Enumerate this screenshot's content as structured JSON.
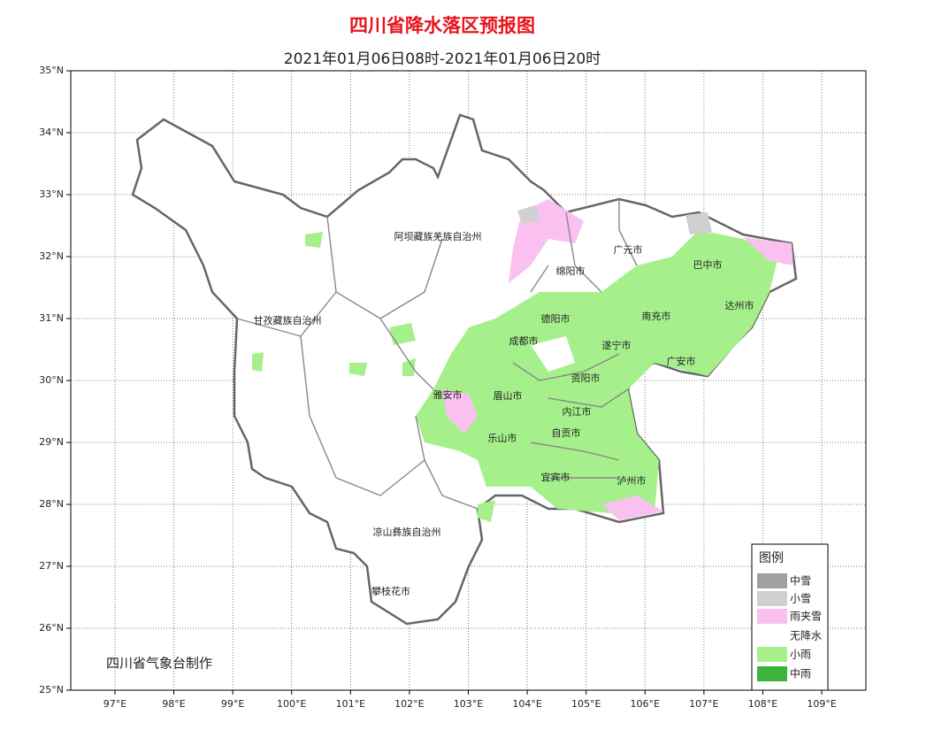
{
  "map": {
    "title": "四川省降水落区预报图",
    "subtitle": "2021年01月06日08时-2021年01月06日20时",
    "credit": "四川省气象台制作",
    "lon_range": [
      96.25,
      109.75
    ],
    "lat_range": [
      25,
      35
    ],
    "lon_ticks": [
      {
        "value": 97,
        "label": "97°E"
      },
      {
        "value": 98,
        "label": "98°E"
      },
      {
        "value": 99,
        "label": "99°E"
      },
      {
        "value": 100,
        "label": "100°E"
      },
      {
        "value": 101,
        "label": "101°E"
      },
      {
        "value": 102,
        "label": "102°E"
      },
      {
        "value": 103,
        "label": "103°E"
      },
      {
        "value": 104,
        "label": "104°E"
      },
      {
        "value": 105,
        "label": "105°E"
      },
      {
        "value": 106,
        "label": "106°E"
      },
      {
        "value": 107,
        "label": "107°E"
      },
      {
        "value": 108,
        "label": "108°E"
      },
      {
        "value": 109,
        "label": "109°E"
      }
    ],
    "lat_ticks": [
      {
        "value": 25,
        "label": "25°N"
      },
      {
        "value": 26,
        "label": "26°N"
      },
      {
        "value": 27,
        "label": "27°N"
      },
      {
        "value": 28,
        "label": "28°N"
      },
      {
        "value": 29,
        "label": "29°N"
      },
      {
        "value": 30,
        "label": "30°N"
      },
      {
        "value": 31,
        "label": "31°N"
      },
      {
        "value": 32,
        "label": "32°N"
      },
      {
        "value": 33,
        "label": "33°N"
      },
      {
        "value": 34,
        "label": "34°N"
      },
      {
        "value": 35,
        "label": "35°N"
      }
    ],
    "regions": [
      "阿坝藏族羌族自治州",
      "广元市",
      "巴中市",
      "绵阳市",
      "达州市",
      "南充市",
      "德阳市",
      "甘孜藏族自治州",
      "成都市",
      "遂宁市",
      "广安市",
      "资阳市",
      "雅安市",
      "眉山市",
      "内江市",
      "自贡市",
      "乐山市",
      "宜宾市",
      "泸州市",
      "凉山彝族自治州",
      "攀枝花市"
    ],
    "legend": {
      "title": "图例",
      "items": [
        {
          "label": "中雪",
          "color": "#a0a0a0"
        },
        {
          "label": "小雪",
          "color": "#d0d0d0"
        },
        {
          "label": "雨夹雪",
          "color": "#f9c0f0"
        },
        {
          "label": "无降水",
          "color": "#ffffff"
        },
        {
          "label": "小雨",
          "color": "#a6f08c"
        },
        {
          "label": "中雨",
          "color": "#3cb43c"
        }
      ]
    }
  }
}
